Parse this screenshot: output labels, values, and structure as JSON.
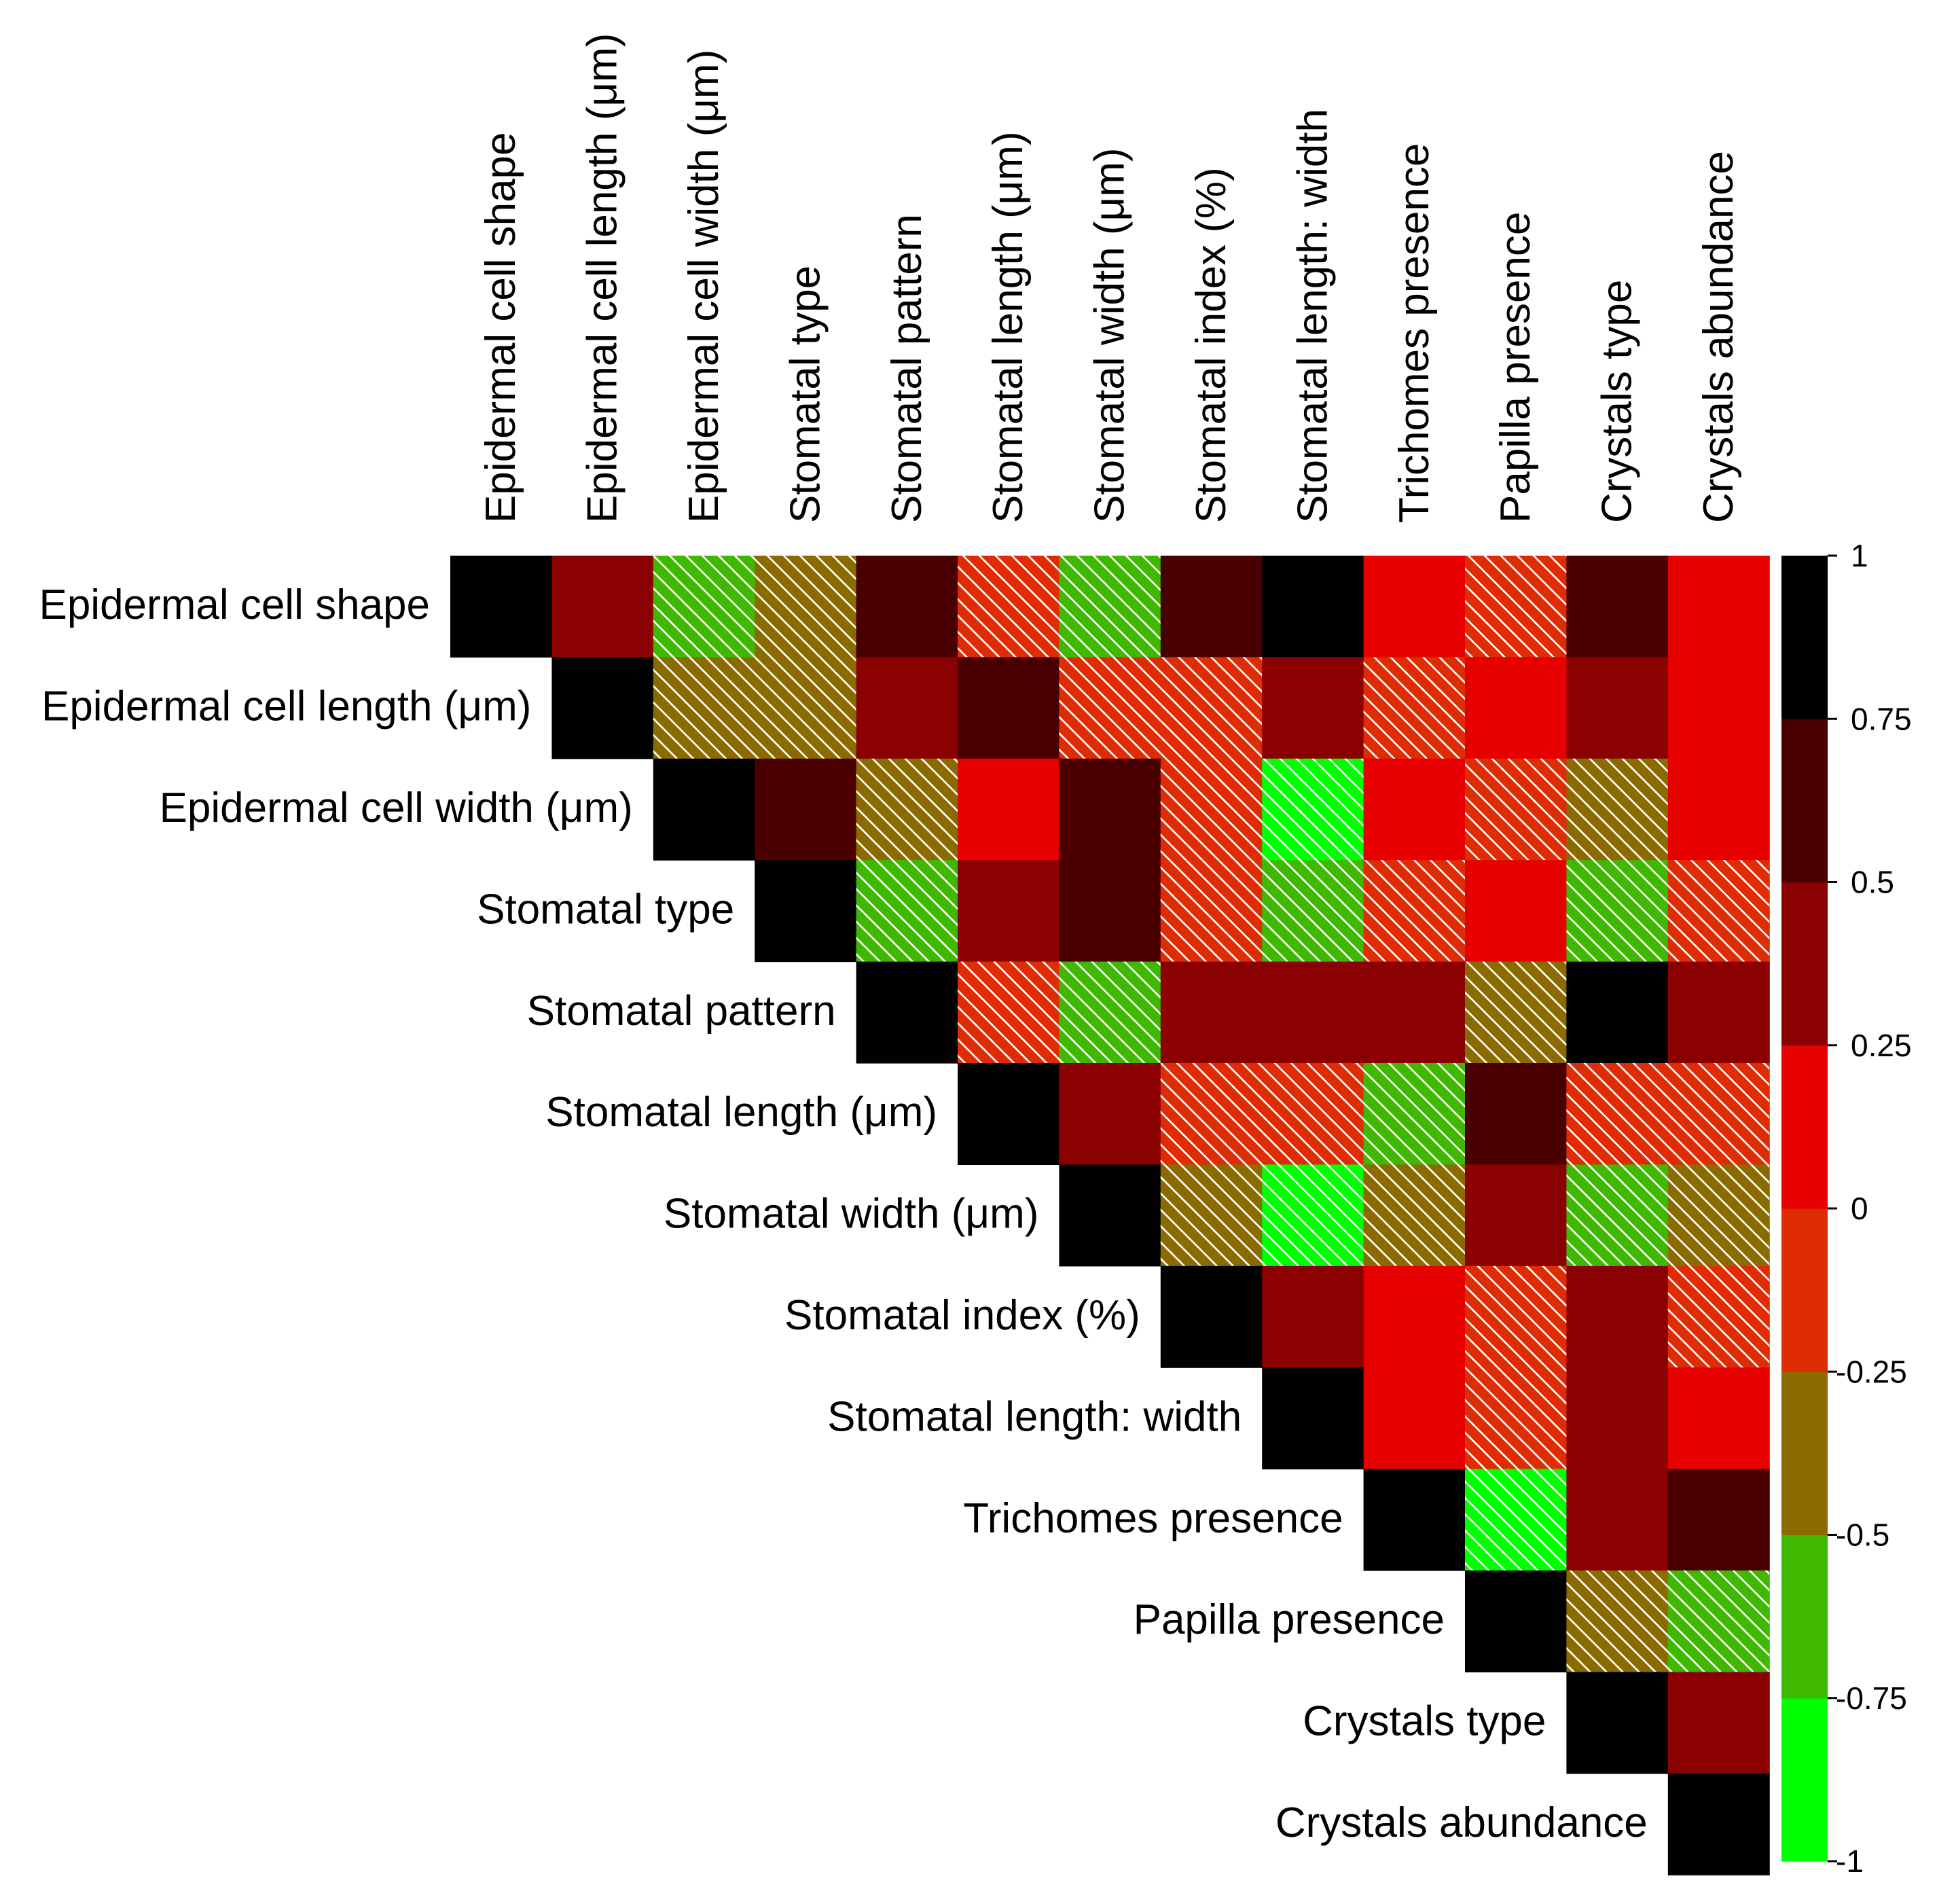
{
  "chart_data": {
    "type": "heatmap",
    "variables": [
      "Epidermal cell shape",
      "Epidermal cell length (μm)",
      "Epidermal cell width (μm)",
      "Stomatal type",
      "Stomatal pattern",
      "Stomatal length (μm)",
      "Stomatal width (μm)",
      "Stomatal index (%)",
      "Stomatal length: width",
      "Trichomes presence",
      "Papilla presence",
      "Crystals type",
      "Crystals abundance"
    ],
    "matrix": [
      [
        1,
        0.4,
        -0.6,
        -0.4,
        0.6,
        -0.1,
        -0.6,
        0.6,
        1,
        0.1,
        -0.1,
        0.6,
        0.1
      ],
      [
        null,
        1,
        -0.4,
        -0.4,
        0.4,
        0.6,
        -0.1,
        -0.1,
        0.4,
        -0.1,
        0.1,
        0.4,
        0.1
      ],
      [
        null,
        null,
        1,
        0.6,
        -0.4,
        0.1,
        0.6,
        -0.1,
        -0.9,
        0.1,
        -0.1,
        -0.4,
        0.1
      ],
      [
        null,
        null,
        null,
        1,
        -0.6,
        0.4,
        0.6,
        -0.1,
        -0.6,
        -0.1,
        0.1,
        -0.6,
        -0.1
      ],
      [
        null,
        null,
        null,
        null,
        1,
        -0.1,
        -0.6,
        0.4,
        0.4,
        0.4,
        -0.4,
        1,
        0.4
      ],
      [
        null,
        null,
        null,
        null,
        null,
        1,
        0.4,
        -0.1,
        -0.1,
        -0.6,
        0.6,
        -0.1,
        -0.1
      ],
      [
        null,
        null,
        null,
        null,
        null,
        null,
        1,
        -0.4,
        -0.9,
        -0.4,
        0.4,
        -0.6,
        -0.4
      ],
      [
        null,
        null,
        null,
        null,
        null,
        null,
        null,
        1,
        0.4,
        0.1,
        -0.1,
        0.4,
        -0.1
      ],
      [
        null,
        null,
        null,
        null,
        null,
        null,
        null,
        null,
        1,
        0.1,
        -0.1,
        0.4,
        0.1
      ],
      [
        null,
        null,
        null,
        null,
        null,
        null,
        null,
        null,
        null,
        1,
        -0.9,
        0.4,
        0.6
      ],
      [
        null,
        null,
        null,
        null,
        null,
        null,
        null,
        null,
        null,
        null,
        1,
        -0.4,
        -0.6
      ],
      [
        null,
        null,
        null,
        null,
        null,
        null,
        null,
        null,
        null,
        null,
        null,
        1,
        0.4
      ],
      [
        null,
        null,
        null,
        null,
        null,
        null,
        null,
        null,
        null,
        null,
        null,
        null,
        1
      ]
    ],
    "hatched": [
      [
        false,
        false,
        true,
        true,
        false,
        true,
        true,
        false,
        false,
        false,
        true,
        false,
        false
      ],
      [
        false,
        false,
        true,
        true,
        false,
        false,
        true,
        true,
        false,
        true,
        false,
        false,
        false
      ],
      [
        false,
        false,
        false,
        false,
        true,
        false,
        false,
        true,
        true,
        false,
        true,
        true,
        false
      ],
      [
        false,
        false,
        false,
        false,
        true,
        false,
        false,
        true,
        true,
        true,
        false,
        true,
        true
      ],
      [
        false,
        false,
        false,
        false,
        false,
        true,
        true,
        false,
        false,
        false,
        true,
        false,
        false
      ],
      [
        false,
        false,
        false,
        false,
        false,
        false,
        false,
        true,
        true,
        true,
        false,
        true,
        true
      ],
      [
        false,
        false,
        false,
        false,
        false,
        false,
        false,
        true,
        true,
        true,
        false,
        true,
        true
      ],
      [
        false,
        false,
        false,
        false,
        false,
        false,
        false,
        false,
        false,
        false,
        true,
        false,
        true
      ],
      [
        false,
        false,
        false,
        false,
        false,
        false,
        false,
        false,
        false,
        false,
        true,
        false,
        false
      ],
      [
        false,
        false,
        false,
        false,
        false,
        false,
        false,
        false,
        false,
        false,
        true,
        false,
        false
      ],
      [
        false,
        false,
        false,
        false,
        false,
        false,
        false,
        false,
        false,
        false,
        false,
        true,
        true
      ],
      [
        false,
        false,
        false,
        false,
        false,
        false,
        false,
        false,
        false,
        false,
        false,
        false,
        false
      ],
      [
        false,
        false,
        false,
        false,
        false,
        false,
        false,
        false,
        false,
        false,
        false,
        false,
        false
      ]
    ],
    "colorbar": {
      "range": [
        -1,
        1
      ],
      "ticks": [
        1,
        0.75,
        0.5,
        0.25,
        0,
        -0.25,
        -0.5,
        -0.75,
        -1
      ],
      "tick_labels": [
        "1",
        "0.75",
        "0.5",
        "0.25",
        "0",
        "-0.25",
        "-0.5",
        "-0.75",
        "-1"
      ],
      "bins": [
        {
          "from": -1,
          "to": -0.75,
          "color": "#00ff00"
        },
        {
          "from": -0.75,
          "to": -0.5,
          "color": "#3fb900"
        },
        {
          "from": -0.5,
          "to": -0.25,
          "color": "#8b6b00"
        },
        {
          "from": -0.25,
          "to": 0,
          "color": "#e02c05"
        },
        {
          "from": 0,
          "to": 0.25,
          "color": "#e60000"
        },
        {
          "from": 0.25,
          "to": 0.5,
          "color": "#8b0000"
        },
        {
          "from": 0.5,
          "to": 0.75,
          "color": "#4a0000"
        },
        {
          "from": 0.75,
          "to": 1,
          "color": "#000000"
        }
      ]
    },
    "title": "",
    "hatch_color": "#ffffff"
  }
}
